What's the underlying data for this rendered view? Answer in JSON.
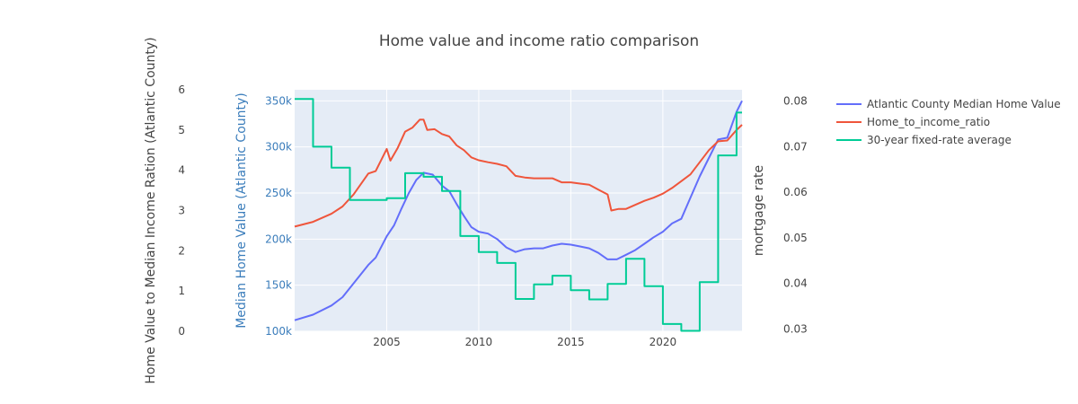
{
  "chart_data": {
    "type": "line",
    "title": "Home value and income ratio comparison",
    "x": {
      "range": [
        2000.0,
        2024.3
      ],
      "ticks": [
        2005,
        2010,
        2015,
        2020
      ]
    },
    "y_ratio": {
      "label": "Home Value to Median Income Ration (Atlantic County)",
      "range": [
        0,
        6
      ],
      "ticks": [
        "0",
        "1",
        "2",
        "3",
        "4",
        "5",
        "6"
      ]
    },
    "y_home": {
      "label": "Median Home Value (Atlantic County)",
      "range": [
        100000,
        362000
      ],
      "ticks": [
        100000,
        150000,
        200000,
        250000,
        300000,
        350000
      ],
      "tick_labels": [
        "100k",
        "150k",
        "200k",
        "250k",
        "300k",
        "350k"
      ]
    },
    "y_rate": {
      "label": "mortgage rate",
      "range": [
        0.0295,
        0.0825
      ],
      "ticks": [
        0.03,
        0.04,
        0.05,
        0.06,
        0.07,
        0.08
      ],
      "tick_labels": [
        "0.03",
        "0.04",
        "0.05",
        "0.06",
        "0.07",
        "0.08"
      ]
    },
    "series": [
      {
        "name": "Atlantic County Median Home Value",
        "color": "#636efa",
        "axis": "home",
        "points": [
          [
            2000.0,
            112000
          ],
          [
            2001.0,
            118000
          ],
          [
            2002.0,
            128000
          ],
          [
            2002.6,
            137000
          ],
          [
            2003.2,
            152000
          ],
          [
            2004.0,
            172000
          ],
          [
            2004.4,
            180000
          ],
          [
            2005.0,
            203000
          ],
          [
            2005.4,
            215000
          ],
          [
            2005.8,
            233000
          ],
          [
            2006.2,
            250000
          ],
          [
            2006.6,
            264000
          ],
          [
            2007.0,
            272000
          ],
          [
            2007.5,
            270000
          ],
          [
            2008.0,
            258000
          ],
          [
            2008.4,
            252000
          ],
          [
            2008.8,
            238000
          ],
          [
            2009.2,
            225000
          ],
          [
            2009.6,
            213000
          ],
          [
            2010.0,
            208000
          ],
          [
            2010.5,
            206000
          ],
          [
            2011.0,
            200000
          ],
          [
            2011.5,
            191000
          ],
          [
            2012.0,
            186000
          ],
          [
            2012.5,
            189000
          ],
          [
            2013.0,
            190000
          ],
          [
            2013.5,
            190000
          ],
          [
            2014.0,
            193000
          ],
          [
            2014.5,
            195000
          ],
          [
            2015.0,
            194000
          ],
          [
            2015.5,
            192000
          ],
          [
            2016.0,
            190000
          ],
          [
            2016.5,
            185000
          ],
          [
            2017.0,
            178000
          ],
          [
            2017.5,
            178000
          ],
          [
            2018.0,
            183000
          ],
          [
            2018.5,
            188000
          ],
          [
            2019.0,
            195000
          ],
          [
            2019.5,
            202000
          ],
          [
            2020.0,
            208000
          ],
          [
            2020.5,
            217000
          ],
          [
            2021.0,
            222000
          ],
          [
            2021.5,
            245000
          ],
          [
            2022.0,
            268000
          ],
          [
            2022.5,
            288000
          ],
          [
            2023.0,
            308000
          ],
          [
            2023.5,
            310000
          ],
          [
            2024.0,
            338000
          ],
          [
            2024.3,
            350000
          ]
        ]
      },
      {
        "name": "Home_to_income_ratio",
        "color": "#ef553b",
        "axis": "ratio",
        "points": [
          [
            2000.0,
            2.6
          ],
          [
            2001.0,
            2.72
          ],
          [
            2002.0,
            2.92
          ],
          [
            2002.6,
            3.1
          ],
          [
            2003.2,
            3.4
          ],
          [
            2004.0,
            3.92
          ],
          [
            2004.4,
            3.98
          ],
          [
            2005.0,
            4.53
          ],
          [
            2005.2,
            4.24
          ],
          [
            2005.6,
            4.56
          ],
          [
            2006.0,
            4.96
          ],
          [
            2006.4,
            5.06
          ],
          [
            2006.8,
            5.26
          ],
          [
            2007.0,
            5.26
          ],
          [
            2007.2,
            5.0
          ],
          [
            2007.6,
            5.02
          ],
          [
            2008.0,
            4.9
          ],
          [
            2008.4,
            4.84
          ],
          [
            2008.8,
            4.62
          ],
          [
            2009.2,
            4.5
          ],
          [
            2009.6,
            4.32
          ],
          [
            2010.0,
            4.25
          ],
          [
            2010.5,
            4.2
          ],
          [
            2011.0,
            4.16
          ],
          [
            2011.5,
            4.1
          ],
          [
            2012.0,
            3.86
          ],
          [
            2012.5,
            3.82
          ],
          [
            2013.0,
            3.8
          ],
          [
            2013.5,
            3.8
          ],
          [
            2014.0,
            3.8
          ],
          [
            2014.5,
            3.7
          ],
          [
            2015.0,
            3.7
          ],
          [
            2015.5,
            3.67
          ],
          [
            2016.0,
            3.64
          ],
          [
            2016.5,
            3.52
          ],
          [
            2017.0,
            3.4
          ],
          [
            2017.2,
            3.0
          ],
          [
            2017.6,
            3.04
          ],
          [
            2018.0,
            3.04
          ],
          [
            2018.5,
            3.14
          ],
          [
            2019.0,
            3.24
          ],
          [
            2019.5,
            3.32
          ],
          [
            2020.0,
            3.42
          ],
          [
            2020.5,
            3.56
          ],
          [
            2021.0,
            3.73
          ],
          [
            2021.5,
            3.9
          ],
          [
            2022.0,
            4.2
          ],
          [
            2022.5,
            4.5
          ],
          [
            2023.0,
            4.72
          ],
          [
            2023.5,
            4.74
          ],
          [
            2024.0,
            5.0
          ],
          [
            2024.3,
            5.13
          ]
        ]
      },
      {
        "name": "30-year fixed-rate average",
        "color": "#00cc96",
        "axis": "rate",
        "shape": "step",
        "points": [
          [
            2000.0,
            0.0805
          ],
          [
            2001.0,
            0.07
          ],
          [
            2002.0,
            0.0654
          ],
          [
            2003.0,
            0.0583
          ],
          [
            2005.0,
            0.0587
          ],
          [
            2006.0,
            0.0642
          ],
          [
            2007.0,
            0.0634
          ],
          [
            2008.0,
            0.0603
          ],
          [
            2009.0,
            0.0504
          ],
          [
            2010.0,
            0.0469
          ],
          [
            2011.0,
            0.0445
          ],
          [
            2012.0,
            0.0366
          ],
          [
            2013.0,
            0.0398
          ],
          [
            2014.0,
            0.0417
          ],
          [
            2015.0,
            0.0385
          ],
          [
            2016.0,
            0.0365
          ],
          [
            2017.0,
            0.0399
          ],
          [
            2018.0,
            0.0454
          ],
          [
            2019.0,
            0.0394
          ],
          [
            2020.0,
            0.0311
          ],
          [
            2021.0,
            0.0296
          ],
          [
            2022.0,
            0.0403
          ],
          [
            2023.0,
            0.0681
          ],
          [
            2024.0,
            0.0775
          ],
          [
            2024.3,
            0.0775
          ]
        ]
      }
    ],
    "grid": true,
    "legend": "right"
  }
}
